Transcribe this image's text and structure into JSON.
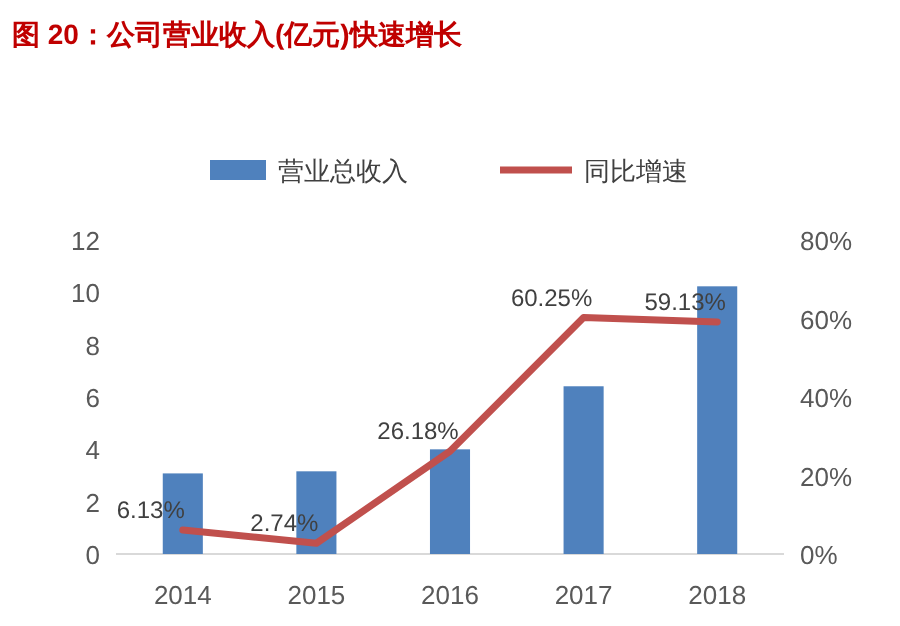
{
  "chart_data": {
    "type": "bar",
    "title": "图 20：公司营业收入(亿元)快速增长",
    "categories": [
      "2014",
      "2015",
      "2016",
      "2017",
      "2018"
    ],
    "series": [
      {
        "name": "营业总收入",
        "color": "#4f81bd",
        "values": [
          3.08,
          3.16,
          4.0,
          6.41,
          10.23
        ]
      },
      {
        "name": "同比增速",
        "type": "line",
        "axis": "y2",
        "color": "#c0504d",
        "values": [
          6.13,
          2.74,
          26.18,
          60.25,
          59.13
        ],
        "value_labels": [
          "6.13%",
          "2.74%",
          "26.18%",
          "60.25%",
          "59.13%"
        ]
      }
    ],
    "ylim": [
      0,
      12
    ],
    "yticks": [
      0,
      2,
      4,
      6,
      8,
      10,
      12
    ],
    "y2lim": [
      0,
      80
    ],
    "y2ticks": [
      {
        "value": 0,
        "label": "0%"
      },
      {
        "value": 20,
        "label": "20%"
      },
      {
        "value": 40,
        "label": "40%"
      },
      {
        "value": 60,
        "label": "60%"
      },
      {
        "value": 80,
        "label": "80%"
      }
    ],
    "legend": "top",
    "grid": false
  }
}
